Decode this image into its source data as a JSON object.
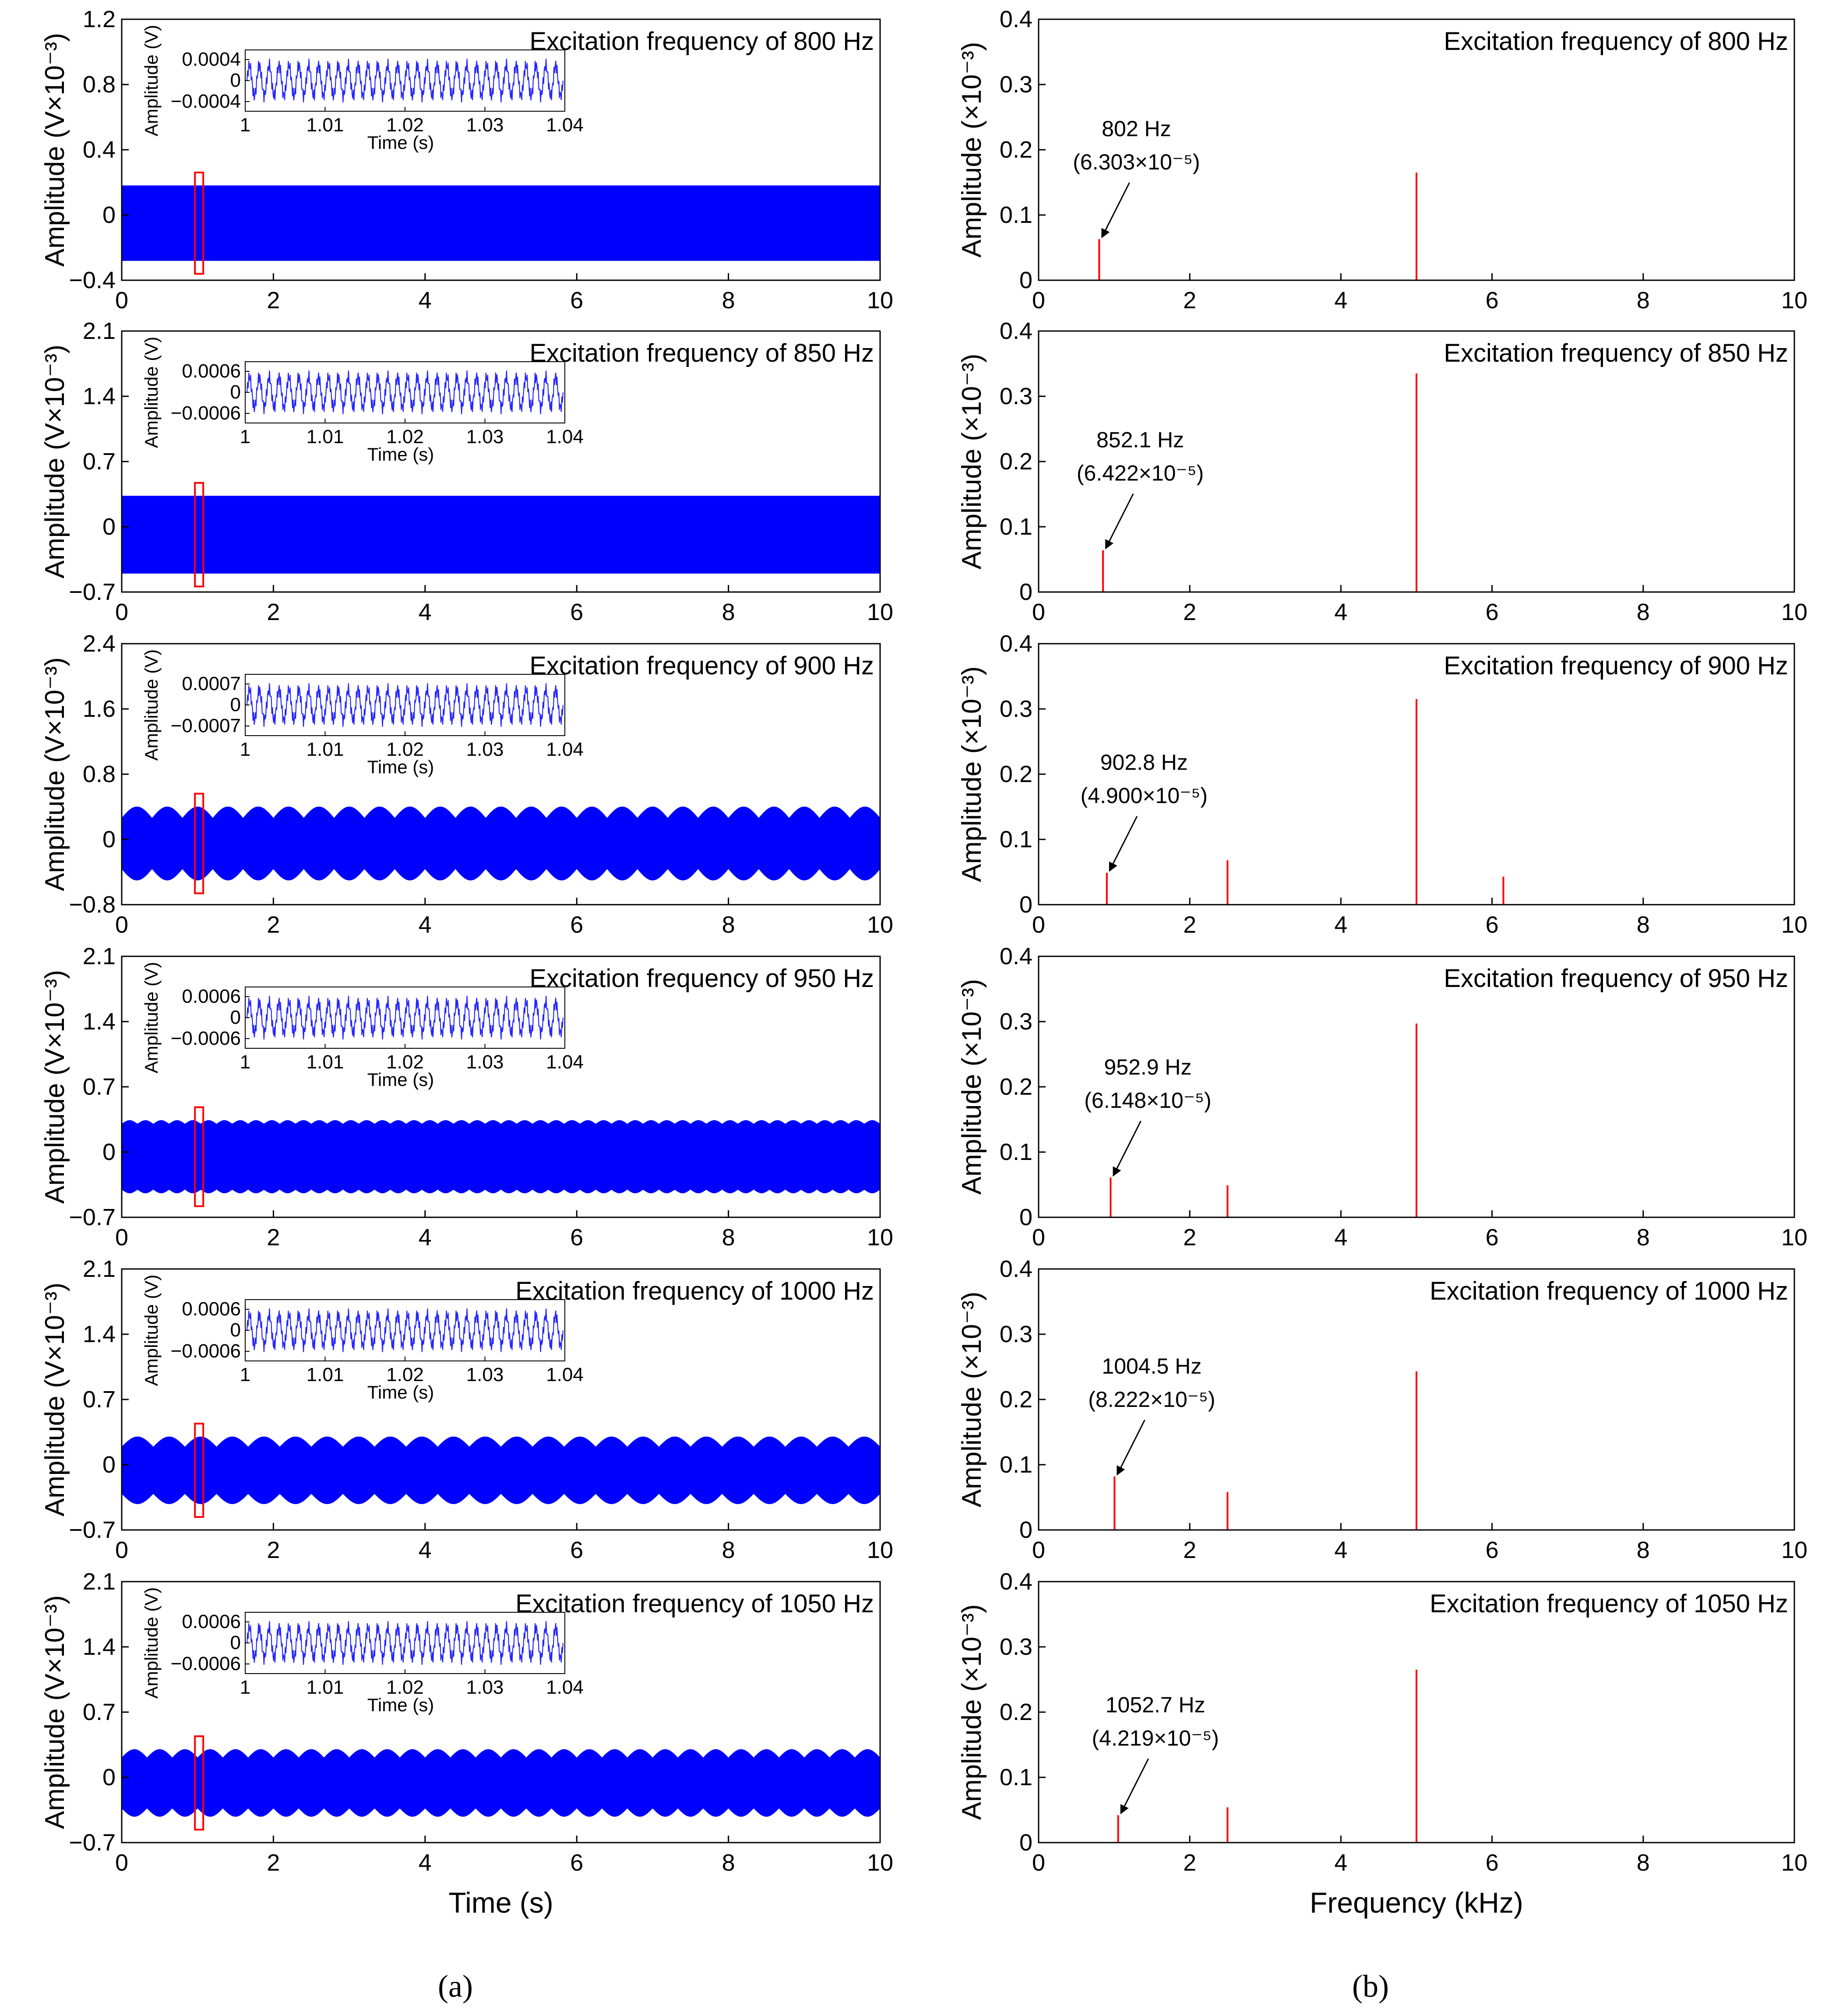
{
  "figure": {
    "caption_a": "(a)",
    "caption_b": "(b)"
  },
  "colors": {
    "signal": "#0000ff",
    "spectrum": "#ff0000",
    "box": "#ff0000",
    "axis": "#000000"
  },
  "chart_data": [
    {
      "type": "area",
      "panel": "a1",
      "title": "Excitation frequency of 800 Hz",
      "xlabel": "",
      "ylabel": "Amplitude (V×10⁻³)",
      "xlim": [
        0,
        10
      ],
      "ylim": [
        -0.4,
        1.2
      ],
      "xticks": [
        "0",
        "2",
        "4",
        "6",
        "8",
        "10"
      ],
      "yticks": [
        "-0.4",
        "0",
        "0.4",
        "0.8",
        "1.2"
      ],
      "envelope": {
        "upper": 0.18,
        "lower": -0.28,
        "ripple": 0.0,
        "ripple_periods": 0
      },
      "highlight_x": [
        1.0,
        1.04
      ],
      "inset": {
        "xlabel": "Time (s)",
        "ylabel": "Amplitude (V)",
        "xticks": [
          "1",
          "1.01",
          "1.02",
          "1.03",
          "1.04"
        ],
        "yticks": [
          "0.0004",
          "0",
          "-0.0004"
        ]
      }
    },
    {
      "type": "area",
      "panel": "a2",
      "title": "Excitation frequency of 850 Hz",
      "xlabel": "",
      "ylabel": "Amplitude (V×10⁻³)",
      "xlim": [
        0,
        10
      ],
      "ylim": [
        -0.7,
        2.1
      ],
      "xticks": [
        "0",
        "2",
        "4",
        "6",
        "8",
        "10"
      ],
      "yticks": [
        "-0.7",
        "0",
        "0.7",
        "1.4",
        "2.1"
      ],
      "envelope": {
        "upper": 0.33,
        "lower": -0.5,
        "ripple": 0.0,
        "ripple_periods": 0
      },
      "highlight_x": [
        1.0,
        1.04
      ],
      "inset": {
        "xlabel": "Time (s)",
        "ylabel": "Amplitude (V)",
        "xticks": [
          "1",
          "1.01",
          "1.02",
          "1.03",
          "1.04"
        ],
        "yticks": [
          "0.0006",
          "0",
          "-0.0006"
        ]
      }
    },
    {
      "type": "area",
      "panel": "a3",
      "title": "Excitation frequency of 900 Hz",
      "xlabel": "",
      "ylabel": "Amplitude (V×10⁻³)",
      "xlim": [
        0,
        10
      ],
      "ylim": [
        -0.8,
        2.4
      ],
      "xticks": [
        "0",
        "2",
        "4",
        "6",
        "8",
        "10"
      ],
      "yticks": [
        "-0.8",
        "0",
        "0.8",
        "1.6",
        "2.4"
      ],
      "envelope": {
        "upper": 0.4,
        "lower": -0.5,
        "ripple": 0.14,
        "ripple_periods": 25
      },
      "highlight_x": [
        1.0,
        1.04
      ],
      "inset": {
        "xlabel": "Time (s)",
        "ylabel": "Amplitude (V)",
        "xticks": [
          "1",
          "1.01",
          "1.02",
          "1.03",
          "1.04"
        ],
        "yticks": [
          "0.0007",
          "0",
          "-0.0007"
        ]
      }
    },
    {
      "type": "area",
      "panel": "a4",
      "title": "Excitation frequency of 950 Hz",
      "xlabel": "",
      "ylabel": "Amplitude (V×10⁻³)",
      "xlim": [
        0,
        10
      ],
      "ylim": [
        -0.7,
        2.1
      ],
      "xticks": [
        "0",
        "2",
        "4",
        "6",
        "8",
        "10"
      ],
      "yticks": [
        "-0.7",
        "0",
        "0.7",
        "1.4",
        "2.1"
      ],
      "envelope": {
        "upper": 0.34,
        "lower": -0.44,
        "ripple": 0.04,
        "ripple_periods": 48
      },
      "highlight_x": [
        1.0,
        1.04
      ],
      "inset": {
        "xlabel": "Time (s)",
        "ylabel": "Amplitude (V)",
        "xticks": [
          "1",
          "1.01",
          "1.02",
          "1.03",
          "1.04"
        ],
        "yticks": [
          "0.0006",
          "0",
          "-0.0006"
        ]
      }
    },
    {
      "type": "area",
      "panel": "a5",
      "title": "Excitation frequency of 1000 Hz",
      "xlabel": "",
      "ylabel": "Amplitude (V×10⁻³)",
      "xlim": [
        0,
        10
      ],
      "ylim": [
        -0.7,
        2.1
      ],
      "xticks": [
        "0",
        "2",
        "4",
        "6",
        "8",
        "10"
      ],
      "yticks": [
        "-0.7",
        "0",
        "0.7",
        "1.4",
        "2.1"
      ],
      "envelope": {
        "upper": 0.3,
        "lower": -0.42,
        "ripple": 0.11,
        "ripple_periods": 24
      },
      "highlight_x": [
        1.0,
        1.04
      ],
      "inset": {
        "xlabel": "Time (s)",
        "ylabel": "Amplitude (V)",
        "xticks": [
          "1",
          "1.01",
          "1.02",
          "1.03",
          "1.04"
        ],
        "yticks": [
          "0.0006",
          "0",
          "-0.0006"
        ]
      }
    },
    {
      "type": "area",
      "panel": "a6",
      "title": "Excitation frequency of 1050 Hz",
      "xlabel": "Time (s)",
      "ylabel": "Amplitude (V×10⁻³)",
      "xlim": [
        0,
        10
      ],
      "ylim": [
        -0.7,
        2.1
      ],
      "xticks": [
        "0",
        "2",
        "4",
        "6",
        "8",
        "10"
      ],
      "yticks": [
        "-0.7",
        "0",
        "0.7",
        "1.4",
        "2.1"
      ],
      "envelope": {
        "upper": 0.3,
        "lower": -0.42,
        "ripple": 0.09,
        "ripple_periods": 30
      },
      "highlight_x": [
        1.0,
        1.04
      ],
      "inset": {
        "xlabel": "Time (s)",
        "ylabel": "Amplitude (V)",
        "xticks": [
          "1",
          "1.01",
          "1.02",
          "1.03",
          "1.04"
        ],
        "yticks": [
          "0.0006",
          "0",
          "-0.0006"
        ]
      }
    },
    {
      "type": "bar",
      "panel": "b1",
      "title": "Excitation frequency of 800 Hz",
      "xlabel": "",
      "ylabel": "Amplitude (×10⁻³)",
      "xlim": [
        0,
        10
      ],
      "ylim": [
        0,
        0.4
      ],
      "xticks": [
        "0",
        "2",
        "4",
        "6",
        "8",
        "10"
      ],
      "yticks": [
        "0",
        "0.1",
        "0.2",
        "0.3",
        "0.4"
      ],
      "peaks": [
        {
          "x": 0.802,
          "y": 0.063
        },
        {
          "x": 5.0,
          "y": 0.165
        }
      ],
      "annotation": {
        "freq": "802 Hz",
        "amp": "(6.303×10⁻⁵)"
      }
    },
    {
      "type": "bar",
      "panel": "b2",
      "title": "Excitation frequency of 850 Hz",
      "xlabel": "",
      "ylabel": "Amplitude (×10⁻³)",
      "xlim": [
        0,
        10
      ],
      "ylim": [
        0,
        0.4
      ],
      "xticks": [
        "0",
        "2",
        "4",
        "6",
        "8",
        "10"
      ],
      "yticks": [
        "0",
        "0.1",
        "0.2",
        "0.3",
        "0.4"
      ],
      "peaks": [
        {
          "x": 0.8521,
          "y": 0.064
        },
        {
          "x": 5.0,
          "y": 0.335
        }
      ],
      "annotation": {
        "freq": "852.1 Hz",
        "amp": "(6.422×10⁻⁵)"
      }
    },
    {
      "type": "bar",
      "panel": "b3",
      "title": "Excitation frequency of 900 Hz",
      "xlabel": "",
      "ylabel": "Amplitude (×10⁻³)",
      "xlim": [
        0,
        10
      ],
      "ylim": [
        0,
        0.4
      ],
      "xticks": [
        "0",
        "2",
        "4",
        "6",
        "8",
        "10"
      ],
      "yticks": [
        "0",
        "0.1",
        "0.2",
        "0.3",
        "0.4"
      ],
      "peaks": [
        {
          "x": 0.9028,
          "y": 0.049
        },
        {
          "x": 2.5,
          "y": 0.068
        },
        {
          "x": 5.0,
          "y": 0.315
        },
        {
          "x": 6.15,
          "y": 0.043
        }
      ],
      "annotation": {
        "freq": "902.8 Hz",
        "amp": "(4.900×10⁻⁵)"
      }
    },
    {
      "type": "bar",
      "panel": "b4",
      "title": "Excitation frequency of 950 Hz",
      "xlabel": "",
      "ylabel": "Amplitude (×10⁻³)",
      "xlim": [
        0,
        10
      ],
      "ylim": [
        0,
        0.4
      ],
      "xticks": [
        "0",
        "2",
        "4",
        "6",
        "8",
        "10"
      ],
      "yticks": [
        "0",
        "0.1",
        "0.2",
        "0.3",
        "0.4"
      ],
      "peaks": [
        {
          "x": 0.9529,
          "y": 0.061
        },
        {
          "x": 2.5,
          "y": 0.049
        },
        {
          "x": 5.0,
          "y": 0.297
        }
      ],
      "annotation": {
        "freq": "952.9 Hz",
        "amp": "(6.148×10⁻⁵)"
      }
    },
    {
      "type": "bar",
      "panel": "b5",
      "title": "Excitation frequency of 1000 Hz",
      "xlabel": "",
      "ylabel": "Amplitude (×10⁻³)",
      "xlim": [
        0,
        10
      ],
      "ylim": [
        0,
        0.4
      ],
      "xticks": [
        "0",
        "2",
        "4",
        "6",
        "8",
        "10"
      ],
      "yticks": [
        "0",
        "0.1",
        "0.2",
        "0.3",
        "0.4"
      ],
      "peaks": [
        {
          "x": 1.0045,
          "y": 0.082
        },
        {
          "x": 2.5,
          "y": 0.058
        },
        {
          "x": 5.0,
          "y": 0.243
        }
      ],
      "annotation": {
        "freq": "1004.5 Hz",
        "amp": "(8.222×10⁻⁵)"
      }
    },
    {
      "type": "bar",
      "panel": "b6",
      "title": "Excitation frequency of 1050 Hz",
      "xlabel": "Frequency (kHz)",
      "ylabel": "Amplitude (×10⁻³)",
      "xlim": [
        0,
        10
      ],
      "ylim": [
        0,
        0.4
      ],
      "xticks": [
        "0",
        "2",
        "4",
        "6",
        "8",
        "10"
      ],
      "yticks": [
        "0",
        "0.1",
        "0.2",
        "0.3",
        "0.4"
      ],
      "peaks": [
        {
          "x": 1.0527,
          "y": 0.042
        },
        {
          "x": 2.5,
          "y": 0.054
        },
        {
          "x": 5.0,
          "y": 0.265
        }
      ],
      "annotation": {
        "freq": "1052.7 Hz",
        "amp": "(4.219×10⁻⁵)"
      }
    }
  ]
}
